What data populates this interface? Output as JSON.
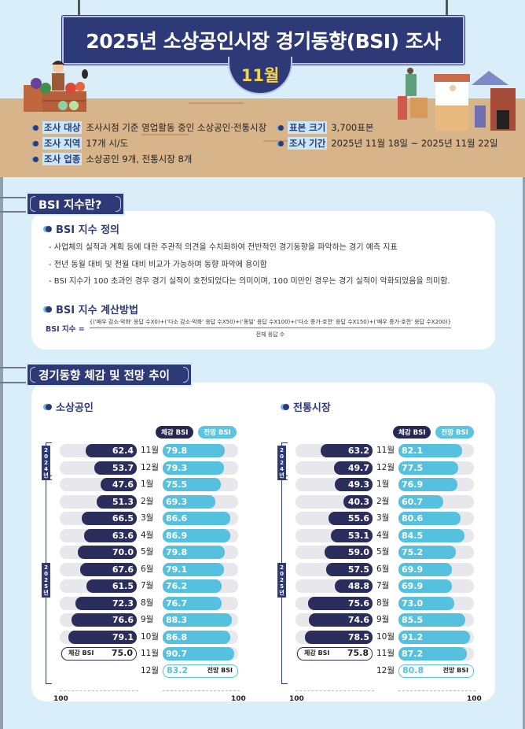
{
  "header": {
    "title": "2025년 소상공인시장 경기동향(BSI) 조사",
    "month": "11월"
  },
  "survey_info": {
    "target_label": "조사 대상",
    "target_value": "조사시점 기준 영업활동 중인 소상공인·전통시장",
    "region_label": "조사 지역",
    "region_value": "17개 시/도",
    "industry_label": "조사 업종",
    "industry_value": "소상공인 9개, 전통시장 8개",
    "sample_label": "표본 크기",
    "sample_value": "3,700표본",
    "period_label": "조사 기간",
    "period_value": "2025년 11월 18일 ~ 2025년 11월 22일"
  },
  "bsi_section": {
    "title": "BSI 지수란?",
    "definition_heading": "BSI 지수 정의",
    "definition_lines": [
      "- 사업체의 실적과 계획 등에 대한 주관적 의견을 수치화하여 전반적인 경기동향을 파악하는 경기 예측 지표",
      "- 전년 동월 대비 및 전월 대비 비교가 가능하며 동향 파악에 용이함",
      "- BSI 지수가 100 초과인 경우 경기 실적이 호전되었다는 의미이며, 100 미만인 경우는 경기 실적이 악화되었음을 의미함."
    ],
    "calc_heading": "BSI 지수 계산방법",
    "formula_lhs": "BSI 지수 =",
    "formula_numerator": "{('매우 감소·악화' 응답 수X0)+('다소 감소·악화' 응답 수X50)+('동일' 응답 수X100)+('다소 증가·호전' 응답 수X150)+('매우 증가·호전' 응답 수X200)}",
    "formula_denominator": "전체 응답 수"
  },
  "trend_section": {
    "title": "경기동향 체감 및 전망 추이",
    "legend_current": "체감 BSI",
    "legend_forecast": "전망 BSI",
    "year_2024": "2024년",
    "year_2025": "2025년",
    "axis_left": "100",
    "axis_right": "100"
  },
  "chart_data": [
    {
      "type": "bar",
      "title": "소상공인",
      "categories": [
        "11월",
        "12월",
        "1월",
        "2월",
        "3월",
        "4월",
        "5월",
        "6월",
        "7월",
        "8월",
        "9월",
        "10월",
        "11월",
        "12월"
      ],
      "period_groups": [
        {
          "label": "2024년",
          "categories": [
            "11월",
            "12월"
          ]
        },
        {
          "label": "2025년",
          "categories": [
            "1월",
            "2월",
            "3월",
            "4월",
            "5월",
            "6월",
            "7월",
            "8월",
            "9월",
            "10월",
            "11월",
            "12월"
          ]
        }
      ],
      "series": [
        {
          "name": "체감 BSI",
          "color": "#2b2d5c",
          "values": [
            62.4,
            53.7,
            47.6,
            51.3,
            66.5,
            63.6,
            70.0,
            67.6,
            61.5,
            72.3,
            76.6,
            79.1,
            75.0,
            null
          ]
        },
        {
          "name": "전망 BSI",
          "color": "#56c1df",
          "values": [
            79.8,
            79.3,
            75.5,
            69.3,
            86.6,
            86.9,
            79.8,
            79.1,
            76.2,
            76.7,
            88.3,
            86.8,
            90.7,
            83.2
          ]
        }
      ],
      "reference_value": 100
    },
    {
      "type": "bar",
      "title": "전통시장",
      "categories": [
        "11월",
        "12월",
        "1월",
        "2월",
        "3월",
        "4월",
        "5월",
        "6월",
        "7월",
        "8월",
        "9월",
        "10월",
        "11월",
        "12월"
      ],
      "period_groups": [
        {
          "label": "2024년",
          "categories": [
            "11월",
            "12월"
          ]
        },
        {
          "label": "2025년",
          "categories": [
            "1월",
            "2월",
            "3월",
            "4월",
            "5월",
            "6월",
            "7월",
            "8월",
            "9월",
            "10월",
            "11월",
            "12월"
          ]
        }
      ],
      "series": [
        {
          "name": "체감 BSI",
          "color": "#2b2d5c",
          "values": [
            63.2,
            49.7,
            49.3,
            40.3,
            55.6,
            53.1,
            59.0,
            57.5,
            48.8,
            75.6,
            74.6,
            78.5,
            75.8,
            null
          ]
        },
        {
          "name": "전망 BSI",
          "color": "#56c1df",
          "values": [
            82.1,
            77.5,
            76.9,
            60.7,
            80.6,
            84.5,
            75.2,
            69.9,
            69.9,
            73.0,
            85.5,
            91.2,
            87.2,
            80.8
          ]
        }
      ],
      "reference_value": 100
    }
  ]
}
